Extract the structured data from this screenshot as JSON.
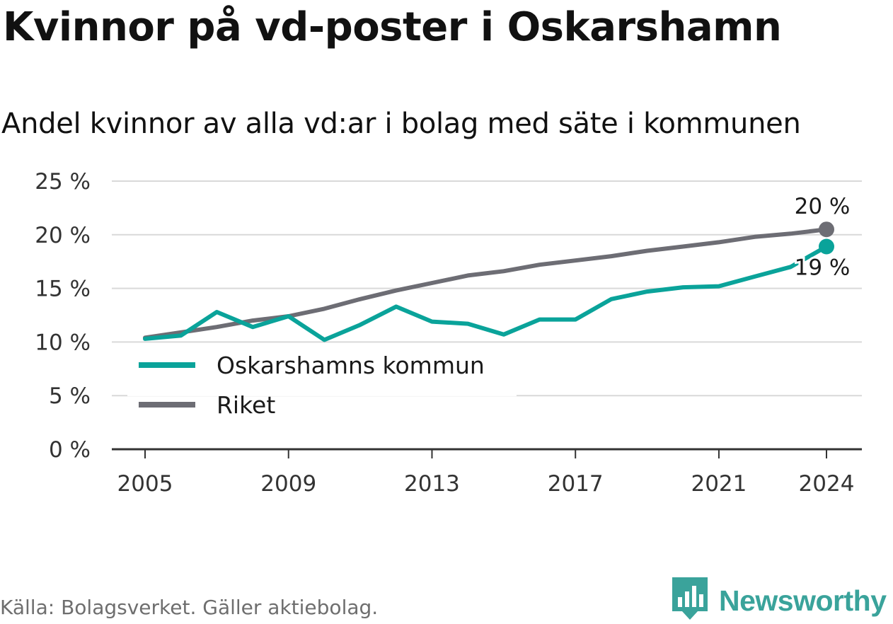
{
  "header": {
    "title": "Kvinnor på vd-poster i Oskarshamn",
    "subtitle": "Andel kvinnor av alla vd:ar i bolag med säte i kommunen"
  },
  "footer": {
    "source": "Källa: Bolagsverket. Gäller aktiebolag.",
    "brand": "Newsworthy"
  },
  "colors": {
    "oskarshamn": "#0aa39a",
    "riket": "#6d6d74",
    "grid": "#d9d9d9",
    "axis": "#333333",
    "brand": "#3aa39b"
  },
  "icons": {
    "brand_logo": "newsworthy-logo-icon"
  },
  "chart_data": {
    "type": "line",
    "title": "Kvinnor på vd-poster i Oskarshamn",
    "subtitle": "Andel kvinnor av alla vd:ar i bolag med säte i kommunen",
    "xlabel": "",
    "ylabel": "",
    "x": [
      2005,
      2006,
      2007,
      2008,
      2009,
      2010,
      2011,
      2012,
      2013,
      2014,
      2015,
      2016,
      2017,
      2018,
      2019,
      2020,
      2021,
      2022,
      2023,
      2024
    ],
    "x_ticks": [
      "2005",
      "2009",
      "2013",
      "2017",
      "2021",
      "2024"
    ],
    "ylim": [
      0,
      25
    ],
    "y_ticks": [
      "0 %",
      "5 %",
      "10 %",
      "15 %",
      "20 %",
      "25 %"
    ],
    "grid": true,
    "legend": "bottom-left",
    "series": [
      {
        "name": "Oskarshamns kommun",
        "color": "#0aa39a",
        "values": [
          10.3,
          10.6,
          12.8,
          11.4,
          12.4,
          10.2,
          11.6,
          13.3,
          11.9,
          11.7,
          10.7,
          12.1,
          12.1,
          14.0,
          14.7,
          15.1,
          15.2,
          16.1,
          17.0,
          18.9
        ],
        "end_label": "19 %"
      },
      {
        "name": "Riket",
        "color": "#6d6d74",
        "values": [
          10.4,
          10.9,
          11.4,
          12.0,
          12.4,
          13.1,
          14.0,
          14.8,
          15.5,
          16.2,
          16.6,
          17.2,
          17.6,
          18.0,
          18.5,
          18.9,
          19.3,
          19.8,
          20.1,
          20.5
        ],
        "end_label": "20 %"
      }
    ]
  }
}
